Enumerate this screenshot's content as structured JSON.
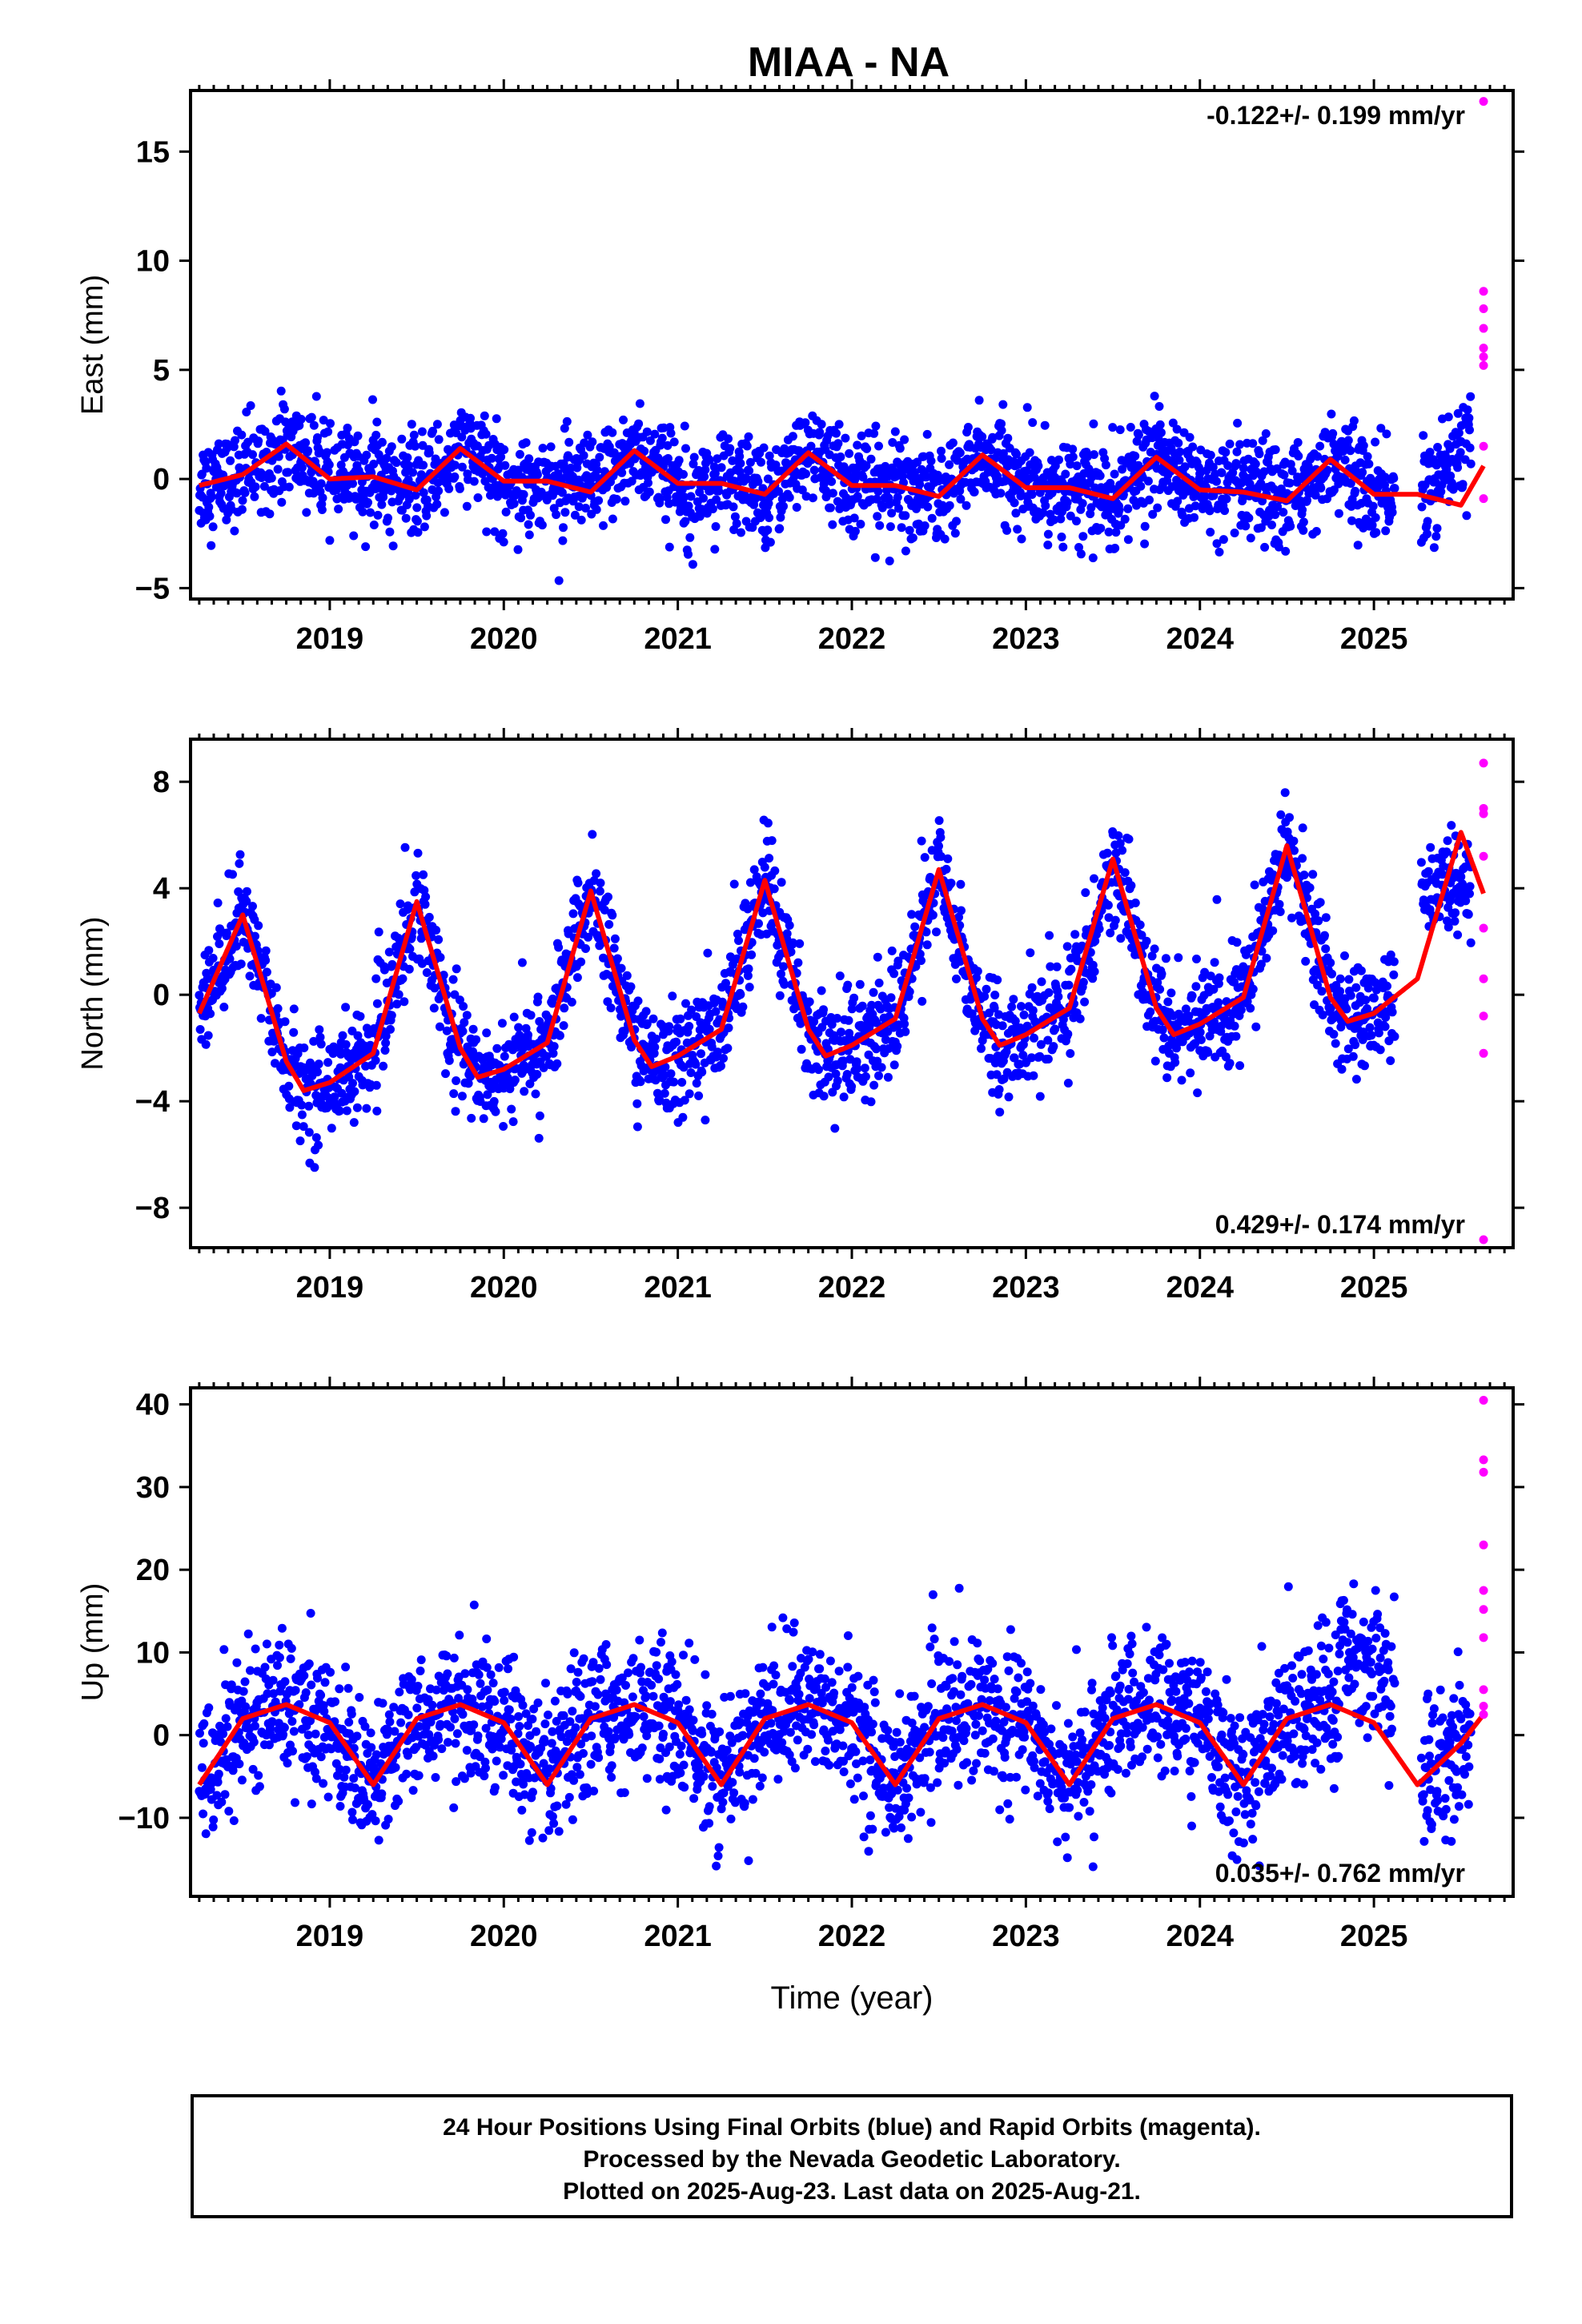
{
  "title": "MIAA - NA",
  "footer": {
    "lines": [
      "24 Hour Positions Using Final Orbits (blue) and Rapid Orbits (magenta).",
      "Processed by the Nevada Geodetic Laboratory.",
      "Plotted on 2025-Aug-23. Last data on 2025-Aug-21."
    ]
  },
  "colors": {
    "final": "#0000ff",
    "rapid": "#ff00ff",
    "model": "#ff0000",
    "axis": "#000000"
  },
  "chart_data": [
    {
      "type": "scatter",
      "panel": "east",
      "ylabel": "East (mm)",
      "xlabel": "",
      "xlim": [
        2018.2,
        2025.8
      ],
      "ylim": [
        -5.5,
        17.8
      ],
      "yticks": [
        -5,
        0,
        5,
        10,
        15
      ],
      "xticks": [
        2019,
        2020,
        2021,
        2022,
        2023,
        2024,
        2025
      ],
      "rate_label": "-0.122+/- 0.199 mm/yr",
      "rate_position": "top-right",
      "final_orbits": {
        "start": 2018.25,
        "end": 2025.56,
        "gap": [
          2025.12,
          2025.27
        ],
        "scatter_mm": 1.1
      },
      "rapid_orbits": {
        "x": [
          2025.63,
          2025.63,
          2025.63,
          2025.63,
          2025.63,
          2025.63,
          2025.63,
          2025.63,
          2025.63
        ],
        "y": [
          17.3,
          8.6,
          7.8,
          6.9,
          6.0,
          5.6,
          5.2,
          1.5,
          -0.9
        ]
      },
      "model": {
        "x": [
          2018.25,
          2018.5,
          2018.75,
          2019.0,
          2019.25,
          2019.5,
          2019.75,
          2020.0,
          2020.25,
          2020.5,
          2020.75,
          2021.0,
          2021.25,
          2021.5,
          2021.75,
          2022.0,
          2022.25,
          2022.5,
          2022.75,
          2023.0,
          2023.25,
          2023.5,
          2023.75,
          2024.0,
          2024.25,
          2024.5,
          2024.75,
          2025.0,
          2025.25,
          2025.5,
          2025.63
        ],
        "y": [
          -0.3,
          0.2,
          1.6,
          0.0,
          0.1,
          -0.5,
          1.4,
          -0.1,
          -0.1,
          -0.6,
          1.3,
          -0.2,
          -0.2,
          -0.7,
          1.2,
          -0.3,
          -0.3,
          -0.8,
          1.1,
          -0.4,
          -0.4,
          -0.9,
          1.0,
          -0.5,
          -0.6,
          -1.0,
          0.9,
          -0.7,
          -0.7,
          -1.2,
          0.6
        ]
      }
    },
    {
      "type": "scatter",
      "panel": "north",
      "ylabel": "North (mm)",
      "xlabel": "",
      "xlim": [
        2018.2,
        2025.8
      ],
      "ylim": [
        -9.5,
        9.6
      ],
      "yticks": [
        -8,
        -4,
        0,
        4,
        8
      ],
      "xticks": [
        2019,
        2020,
        2021,
        2022,
        2023,
        2024,
        2025
      ],
      "rate_label": "0.429+/- 0.174 mm/yr",
      "rate_position": "bottom-right",
      "final_orbits": {
        "start": 2018.25,
        "end": 2025.56,
        "gap": [
          2025.12,
          2025.27
        ],
        "scatter_mm": 1.0
      },
      "rapid_orbits": {
        "x": [
          2025.63,
          2025.63,
          2025.63,
          2025.63,
          2025.63,
          2025.63,
          2025.63,
          2025.63,
          2025.63
        ],
        "y": [
          8.7,
          7.0,
          6.8,
          5.2,
          2.5,
          0.6,
          -0.8,
          -2.2,
          -9.2
        ]
      },
      "model": {
        "x": [
          2018.25,
          2018.5,
          2018.75,
          2018.85,
          2019.0,
          2019.25,
          2019.5,
          2019.75,
          2019.85,
          2020.0,
          2020.25,
          2020.5,
          2020.75,
          2020.85,
          2021.0,
          2021.25,
          2021.5,
          2021.75,
          2021.85,
          2022.0,
          2022.25,
          2022.5,
          2022.75,
          2022.85,
          2023.0,
          2023.25,
          2023.5,
          2023.75,
          2023.85,
          2024.0,
          2024.25,
          2024.5,
          2024.75,
          2024.85,
          2025.0,
          2025.25,
          2025.5,
          2025.63
        ],
        "y": [
          -0.7,
          3.0,
          -2.5,
          -3.6,
          -3.3,
          -2.2,
          3.5,
          -2.0,
          -3.1,
          -2.8,
          -1.8,
          3.9,
          -1.7,
          -2.7,
          -2.3,
          -1.3,
          4.3,
          -1.3,
          -2.3,
          -1.9,
          -0.9,
          4.7,
          -0.9,
          -1.9,
          -1.5,
          -0.5,
          5.1,
          -0.5,
          -1.5,
          -1.1,
          -0.1,
          5.6,
          -0.1,
          -1.0,
          -0.7,
          0.6,
          6.1,
          3.8
        ]
      }
    },
    {
      "type": "scatter",
      "panel": "up",
      "ylabel": "Up (mm)",
      "xlabel": "Time (year)",
      "xlim": [
        2018.2,
        2025.8
      ],
      "ylim": [
        -19.5,
        42.0
      ],
      "yticks": [
        -10,
        0,
        10,
        20,
        30,
        40
      ],
      "xticks": [
        2019,
        2020,
        2021,
        2022,
        2023,
        2024,
        2025
      ],
      "rate_label": "0.035+/- 0.762 mm/yr",
      "rate_position": "bottom-right",
      "final_orbits": {
        "start": 2018.25,
        "end": 2025.56,
        "gap": [
          2025.12,
          2025.27
        ],
        "scatter_mm": 4.2
      },
      "rapid_orbits": {
        "x": [
          2025.63,
          2025.63,
          2025.63,
          2025.63,
          2025.63,
          2025.63,
          2025.63,
          2025.63,
          2025.63,
          2025.63
        ],
        "y": [
          40.5,
          33.3,
          31.8,
          23.0,
          17.5,
          15.2,
          11.8,
          5.5,
          3.5,
          2.5
        ]
      },
      "model": {
        "x": [
          2018.25,
          2018.5,
          2018.75,
          2019.0,
          2019.25,
          2019.5,
          2019.75,
          2020.0,
          2020.25,
          2020.5,
          2020.75,
          2021.0,
          2021.25,
          2021.5,
          2021.75,
          2022.0,
          2022.25,
          2022.5,
          2022.75,
          2023.0,
          2023.25,
          2023.5,
          2023.75,
          2024.0,
          2024.25,
          2024.5,
          2024.75,
          2025.0,
          2025.25,
          2025.5,
          2025.63
        ],
        "y": [
          -6.0,
          2.0,
          3.7,
          1.5,
          -6.0,
          2.0,
          3.7,
          1.5,
          -6.0,
          2.0,
          3.7,
          1.5,
          -6.0,
          2.0,
          3.7,
          1.5,
          -6.0,
          2.0,
          3.7,
          1.5,
          -6.0,
          2.0,
          3.7,
          1.5,
          -6.0,
          2.0,
          3.7,
          1.5,
          -6.0,
          -1.0,
          2.5
        ]
      }
    }
  ]
}
